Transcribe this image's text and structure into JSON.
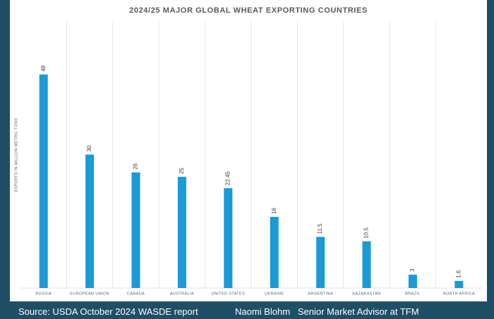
{
  "chart_data": {
    "type": "bar",
    "title": "2024/25 MAJOR GLOBAL WHEAT EXPORTING COUNTRIES",
    "y_label": "EXPORTS IN MILLION METRIC TONS",
    "categories": [
      "RUSSIA",
      "EUROPEAN UNION",
      "CANADA",
      "AUSTRALIA",
      "UNITED STATES",
      "UKRAINE",
      "ARGENTINA",
      "KAZAKHSTAN",
      "BRAZIL",
      "NORTH AFRICA"
    ],
    "values": [
      48,
      30,
      26,
      25,
      22.45,
      16,
      11.5,
      10.5,
      3,
      1.6
    ],
    "color": "#1a9ad6",
    "ylim": [
      0,
      60
    ],
    "grid": true
  },
  "footer": {
    "source": "Source: USDA October 2024 WASDE report",
    "author": "Naomi Blohm   Senior Market Advisor at TFM"
  }
}
